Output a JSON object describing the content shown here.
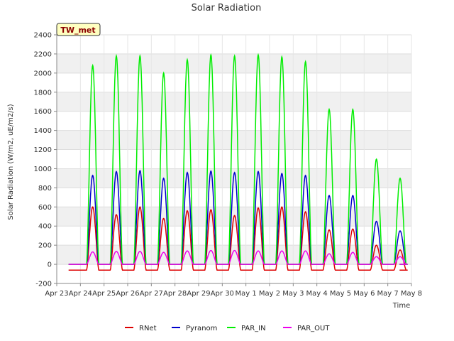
{
  "chart_data": {
    "type": "line",
    "title": "Solar Radiation",
    "xlabel": "Time",
    "ylabel": "Solar Radiation (W/m2, uE/m2/s)",
    "tag": "TW_met",
    "x_ticks": [
      "Apr 23",
      "Apr 24",
      "Apr 25",
      "Apr 26",
      "Apr 27",
      "Apr 28",
      "Apr 29",
      "Apr 30",
      "May 1",
      "May 2",
      "May 3",
      "May 4",
      "May 5",
      "May 6",
      "May 7",
      "May 8"
    ],
    "y_ticks": [
      -200,
      0,
      200,
      400,
      600,
      800,
      1000,
      1200,
      1400,
      1600,
      1800,
      2000,
      2200,
      2400
    ],
    "xlim": [
      0,
      15
    ],
    "ylim": [
      -200,
      2400
    ],
    "grid": true,
    "legend_position": "bottom",
    "day_start": 0.5,
    "day_end": 14.5,
    "series": [
      {
        "name": "RNet",
        "color": "#dd0000",
        "night": -60,
        "daily_peaks": [
          600,
          520,
          600,
          480,
          560,
          570,
          510,
          590,
          600,
          550,
          360,
          370,
          200,
          150
        ]
      },
      {
        "name": "Pyranom",
        "color": "#0000cc",
        "night": 0,
        "daily_peaks": [
          930,
          970,
          980,
          900,
          960,
          975,
          960,
          970,
          950,
          930,
          720,
          720,
          450,
          350
        ]
      },
      {
        "name": "PAR_IN",
        "color": "#00ee00",
        "night": 0,
        "daily_peaks": [
          2080,
          2180,
          2180,
          2000,
          2140,
          2190,
          2180,
          2190,
          2170,
          2120,
          1620,
          1620,
          1100,
          900
        ]
      },
      {
        "name": "PAR_OUT",
        "color": "#ee00ee",
        "night": 0,
        "daily_peaks": [
          130,
          135,
          135,
          125,
          140,
          145,
          145,
          140,
          140,
          140,
          110,
          125,
          80,
          80
        ]
      }
    ]
  }
}
